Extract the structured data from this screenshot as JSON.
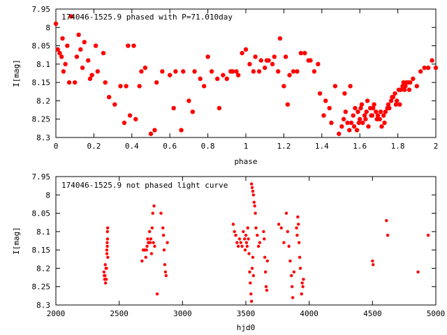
{
  "chart_data": [
    {
      "type": "scatter",
      "title": "174046-1525.9 phased with P=71.010day",
      "xlabel": "phase",
      "ylabel": "I[mag]",
      "xlim": [
        0,
        2
      ],
      "ylim": [
        7.95,
        8.3
      ],
      "y_inverted": true,
      "grid": false,
      "legend": "none",
      "marker": "filled-circle",
      "color": "#ff0000",
      "x_ticks": [
        {
          "value": 0,
          "label": "0"
        },
        {
          "value": 0.2,
          "label": "0.2"
        },
        {
          "value": 0.4,
          "label": "0.4"
        },
        {
          "value": 0.6,
          "label": "0.6"
        },
        {
          "value": 0.8,
          "label": "0.8"
        },
        {
          "value": 1,
          "label": "1"
        },
        {
          "value": 1.2,
          "label": "1.2"
        },
        {
          "value": 1.4,
          "label": "1.4"
        },
        {
          "value": 1.6,
          "label": "1.6"
        },
        {
          "value": 1.8,
          "label": "1.8"
        },
        {
          "value": 2,
          "label": "2"
        }
      ],
      "y_ticks": [
        {
          "value": 7.95,
          "label": "7.95"
        },
        {
          "value": 8.0,
          "label": "8"
        },
        {
          "value": 8.05,
          "label": "8.05"
        },
        {
          "value": 8.1,
          "label": "8.1"
        },
        {
          "value": 8.15,
          "label": "8.15"
        },
        {
          "value": 8.2,
          "label": "8.2"
        },
        {
          "value": 8.25,
          "label": "8.25"
        },
        {
          "value": 8.3,
          "label": "8.3"
        }
      ],
      "points": [
        [
          0.0,
          7.99
        ],
        [
          0.01,
          8.06
        ],
        [
          0.02,
          8.07
        ],
        [
          0.03,
          8.08
        ],
        [
          0.035,
          8.03
        ],
        [
          0.04,
          8.12
        ],
        [
          0.05,
          8.1
        ],
        [
          0.06,
          8.05
        ],
        [
          0.07,
          8.15
        ],
        [
          0.08,
          7.97
        ],
        [
          0.1,
          8.15
        ],
        [
          0.11,
          8.08
        ],
        [
          0.12,
          8.02
        ],
        [
          0.13,
          8.06
        ],
        [
          0.14,
          8.11
        ],
        [
          0.15,
          8.04
        ],
        [
          0.17,
          8.09
        ],
        [
          0.18,
          8.14
        ],
        [
          0.19,
          8.13
        ],
        [
          0.21,
          8.05
        ],
        [
          0.22,
          8.12
        ],
        [
          0.25,
          8.07
        ],
        [
          0.26,
          8.15
        ],
        [
          0.28,
          8.19
        ],
        [
          0.31,
          8.21
        ],
        [
          0.34,
          8.16
        ],
        [
          0.36,
          8.26
        ],
        [
          0.37,
          8.16
        ],
        [
          0.38,
          8.05
        ],
        [
          0.39,
          8.24
        ],
        [
          0.41,
          8.05
        ],
        [
          0.42,
          8.25
        ],
        [
          0.44,
          8.16
        ],
        [
          0.45,
          8.12
        ],
        [
          0.47,
          8.11
        ],
        [
          0.5,
          8.29
        ],
        [
          0.52,
          8.28
        ],
        [
          0.53,
          8.15
        ],
        [
          0.56,
          8.12
        ],
        [
          0.6,
          8.13
        ],
        [
          0.62,
          8.22
        ],
        [
          0.63,
          8.12
        ],
        [
          0.66,
          8.28
        ],
        [
          0.67,
          8.12
        ],
        [
          0.7,
          8.2
        ],
        [
          0.72,
          8.23
        ],
        [
          0.73,
          8.12
        ],
        [
          0.76,
          8.14
        ],
        [
          0.78,
          8.16
        ],
        [
          0.8,
          8.08
        ],
        [
          0.82,
          8.12
        ],
        [
          0.85,
          8.14
        ],
        [
          0.86,
          8.22
        ],
        [
          0.88,
          8.13
        ],
        [
          0.9,
          8.14
        ],
        [
          0.92,
          8.12
        ],
        [
          0.93,
          8.12
        ],
        [
          0.95,
          8.12
        ],
        [
          0.96,
          8.13
        ],
        [
          0.98,
          8.07
        ],
        [
          1.0,
          8.06
        ],
        [
          1.02,
          8.1
        ],
        [
          1.04,
          8.12
        ],
        [
          1.05,
          8.08
        ],
        [
          1.07,
          8.12
        ],
        [
          1.08,
          8.09
        ],
        [
          1.1,
          8.11
        ],
        [
          1.11,
          8.09
        ],
        [
          1.12,
          8.09
        ],
        [
          1.14,
          8.1
        ],
        [
          1.15,
          8.08
        ],
        [
          1.17,
          8.12
        ],
        [
          1.18,
          8.03
        ],
        [
          1.2,
          8.16
        ],
        [
          1.21,
          8.08
        ],
        [
          1.22,
          8.21
        ],
        [
          1.23,
          8.13
        ],
        [
          1.25,
          8.12
        ],
        [
          1.27,
          8.12
        ],
        [
          1.29,
          8.07
        ],
        [
          1.31,
          8.07
        ],
        [
          1.33,
          8.09
        ],
        [
          1.34,
          8.09
        ],
        [
          1.36,
          8.12
        ],
        [
          1.38,
          8.1
        ],
        [
          1.39,
          8.18
        ],
        [
          1.41,
          8.24
        ],
        [
          1.42,
          8.2
        ],
        [
          1.44,
          8.22
        ],
        [
          1.45,
          8.26
        ],
        [
          1.47,
          8.16
        ],
        [
          1.49,
          8.29
        ],
        [
          1.52,
          8.18
        ],
        [
          1.55,
          8.16
        ],
        [
          1.57,
          8.27
        ],
        [
          1.59,
          8.23
        ],
        [
          1.6,
          8.25
        ],
        [
          1.61,
          8.21
        ],
        [
          1.63,
          8.25
        ],
        [
          1.64,
          8.2
        ],
        [
          1.66,
          8.24
        ],
        [
          1.67,
          8.22
        ],
        [
          1.69,
          8.25
        ],
        [
          1.71,
          8.23
        ],
        [
          1.73,
          8.26
        ],
        [
          1.75,
          8.21
        ],
        [
          1.77,
          8.19
        ],
        [
          1.79,
          8.21
        ],
        [
          1.81,
          8.21
        ],
        [
          1.83,
          8.15
        ],
        [
          1.84,
          8.16
        ],
        [
          1.86,
          8.17
        ],
        [
          1.88,
          8.14
        ],
        [
          1.9,
          8.16
        ],
        [
          1.92,
          8.12
        ],
        [
          1.94,
          8.11
        ],
        [
          1.96,
          8.11
        ],
        [
          1.98,
          8.09
        ],
        [
          2.0,
          8.11
        ],
        [
          1.505,
          8.27
        ],
        [
          1.515,
          8.25
        ],
        [
          1.525,
          8.23
        ],
        [
          1.535,
          8.26
        ],
        [
          1.545,
          8.28
        ],
        [
          1.555,
          8.26
        ],
        [
          1.565,
          8.24
        ],
        [
          1.575,
          8.22
        ],
        [
          1.585,
          8.28
        ],
        [
          1.595,
          8.26
        ],
        [
          1.605,
          8.22
        ],
        [
          1.615,
          8.26
        ],
        [
          1.625,
          8.24
        ],
        [
          1.635,
          8.23
        ],
        [
          1.645,
          8.27
        ],
        [
          1.655,
          8.22
        ],
        [
          1.665,
          8.24
        ],
        [
          1.675,
          8.21
        ],
        [
          1.685,
          8.23
        ],
        [
          1.695,
          8.24
        ],
        [
          1.705,
          8.25
        ],
        [
          1.715,
          8.27
        ],
        [
          1.725,
          8.24
        ],
        [
          1.735,
          8.23
        ],
        [
          1.745,
          8.22
        ],
        [
          1.755,
          8.22
        ],
        [
          1.765,
          8.2
        ],
        [
          1.775,
          8.19
        ],
        [
          1.785,
          8.18
        ],
        [
          1.795,
          8.2
        ],
        [
          1.805,
          8.17
        ],
        [
          1.815,
          8.17
        ],
        [
          1.825,
          8.16
        ],
        [
          1.835,
          8.17
        ],
        [
          1.845,
          8.15
        ],
        [
          1.855,
          8.15
        ],
        [
          1.865,
          8.15
        ]
      ]
    },
    {
      "type": "scatter",
      "title": "174046-1525.9 not phased light curve",
      "xlabel": "hjd0",
      "ylabel": "I[mag]",
      "xlim": [
        2000,
        5000
      ],
      "ylim": [
        7.95,
        8.3
      ],
      "y_inverted": true,
      "grid": false,
      "legend": "none",
      "marker": "filled-circle",
      "color": "#ff0000",
      "x_ticks": [
        {
          "value": 2000,
          "label": "2000"
        },
        {
          "value": 2500,
          "label": "2500"
        },
        {
          "value": 3000,
          "label": "3000"
        },
        {
          "value": 3500,
          "label": "3500"
        },
        {
          "value": 4000,
          "label": "4000"
        },
        {
          "value": 4500,
          "label": "4500"
        },
        {
          "value": 5000,
          "label": "5000"
        }
      ],
      "y_ticks": [
        {
          "value": 7.95,
          "label": "7.95"
        },
        {
          "value": 8.0,
          "label": "8"
        },
        {
          "value": 8.05,
          "label": "8.05"
        },
        {
          "value": 8.1,
          "label": "8.1"
        },
        {
          "value": 8.15,
          "label": "8.15"
        },
        {
          "value": 8.2,
          "label": "8.2"
        },
        {
          "value": 8.25,
          "label": "8.25"
        },
        {
          "value": 8.3,
          "label": "8.3"
        }
      ],
      "points": [
        [
          2380,
          8.21
        ],
        [
          2382,
          8.22
        ],
        [
          2385,
          8.23
        ],
        [
          2388,
          8.22
        ],
        [
          2390,
          8.19
        ],
        [
          2392,
          8.24
        ],
        [
          2395,
          8.2
        ],
        [
          2398,
          8.23
        ],
        [
          2400,
          8.2
        ],
        [
          2402,
          8.15
        ],
        [
          2403,
          8.16
        ],
        [
          2405,
          8.13
        ],
        [
          2406,
          8.14
        ],
        [
          2407,
          8.1
        ],
        [
          2408,
          8.12
        ],
        [
          2409,
          8.09
        ],
        [
          2410,
          8.17
        ],
        [
          2680,
          8.18
        ],
        [
          2690,
          8.15
        ],
        [
          2700,
          8.15
        ],
        [
          2710,
          8.17
        ],
        [
          2715,
          8.15
        ],
        [
          2720,
          8.14
        ],
        [
          2725,
          8.12
        ],
        [
          2730,
          8.13
        ],
        [
          2735,
          8.13
        ],
        [
          2740,
          8.1
        ],
        [
          2745,
          8.13
        ],
        [
          2750,
          8.12
        ],
        [
          2755,
          8.16
        ],
        [
          2760,
          8.09
        ],
        [
          2765,
          8.05
        ],
        [
          2770,
          8.13
        ],
        [
          2775,
          8.03
        ],
        [
          2780,
          8.14
        ],
        [
          2800,
          8.27
        ],
        [
          2830,
          8.05
        ],
        [
          2845,
          8.09
        ],
        [
          2850,
          8.11
        ],
        [
          2855,
          8.15
        ],
        [
          2860,
          8.19
        ],
        [
          2865,
          8.21
        ],
        [
          2870,
          8.22
        ],
        [
          2880,
          8.13
        ],
        [
          3400,
          8.08
        ],
        [
          3410,
          8.1
        ],
        [
          3420,
          8.11
        ],
        [
          3430,
          8.13
        ],
        [
          3440,
          8.14
        ],
        [
          3450,
          8.12
        ],
        [
          3460,
          8.13
        ],
        [
          3470,
          8.14
        ],
        [
          3480,
          8.1
        ],
        [
          3490,
          8.12
        ],
        [
          3495,
          8.15
        ],
        [
          3500,
          8.11
        ],
        [
          3505,
          8.13
        ],
        [
          3510,
          8.14
        ],
        [
          3515,
          8.09
        ],
        [
          3520,
          8.12
        ],
        [
          3525,
          8.16
        ],
        [
          3530,
          8.21
        ],
        [
          3535,
          8.24
        ],
        [
          3540,
          8.27
        ],
        [
          3545,
          8.29
        ],
        [
          3550,
          8.2
        ],
        [
          3555,
          8.17
        ],
        [
          3560,
          8.22
        ],
        [
          3545,
          7.97
        ],
        [
          3550,
          7.98
        ],
        [
          3555,
          7.99
        ],
        [
          3560,
          8.0
        ],
        [
          3565,
          8.02
        ],
        [
          3570,
          8.03
        ],
        [
          3575,
          8.05
        ],
        [
          3580,
          8.09
        ],
        [
          3590,
          8.11
        ],
        [
          3600,
          8.14
        ],
        [
          3610,
          8.13
        ],
        [
          3640,
          8.1
        ],
        [
          3645,
          8.12
        ],
        [
          3650,
          8.17
        ],
        [
          3655,
          8.21
        ],
        [
          3660,
          8.25
        ],
        [
          3665,
          8.26
        ],
        [
          3670,
          8.18
        ],
        [
          3760,
          8.08
        ],
        [
          3780,
          8.09
        ],
        [
          3800,
          8.13
        ],
        [
          3820,
          8.05
        ],
        [
          3830,
          8.1
        ],
        [
          3840,
          8.14
        ],
        [
          3850,
          8.18
        ],
        [
          3860,
          8.22
        ],
        [
          3865,
          8.25
        ],
        [
          3870,
          8.28
        ],
        [
          3880,
          8.21
        ],
        [
          3900,
          8.09
        ],
        [
          3905,
          8.11
        ],
        [
          3910,
          8.06
        ],
        [
          3915,
          8.08
        ],
        [
          3920,
          8.13
        ],
        [
          3925,
          8.17
        ],
        [
          3930,
          8.2
        ],
        [
          3940,
          8.27
        ],
        [
          3945,
          8.24
        ],
        [
          3950,
          8.25
        ],
        [
          3955,
          8.23
        ],
        [
          4500,
          8.18
        ],
        [
          4505,
          8.19
        ],
        [
          4610,
          8.07
        ],
        [
          4620,
          8.11
        ],
        [
          4860,
          8.21
        ],
        [
          4940,
          8.11
        ]
      ]
    }
  ]
}
